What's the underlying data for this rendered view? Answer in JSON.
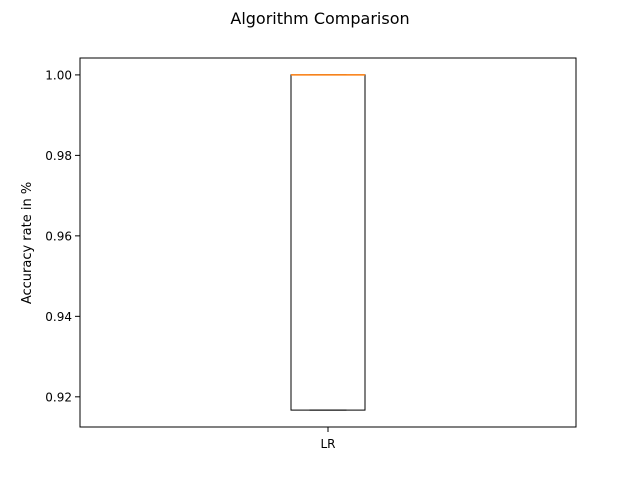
{
  "chart_data": {
    "type": "box",
    "title": "Algorithm Comparison",
    "xlabel": "",
    "ylabel": "Accuracy rate in %",
    "categories": [
      "LR"
    ],
    "boxes": [
      {
        "category": "LR",
        "whisker_low": 0.9167,
        "q1": 0.9167,
        "median": 1.0,
        "q3": 1.0,
        "whisker_high": 1.0
      }
    ],
    "ylim": [
      0.9125,
      1.0042
    ],
    "yticks": [
      0.92,
      0.94,
      0.96,
      0.98,
      1.0
    ],
    "ytick_labels": [
      "0.92",
      "0.94",
      "0.96",
      "0.98",
      "1.00"
    ],
    "grid": false,
    "colors": {
      "box": "#000000",
      "median": "#ff7f0e",
      "axes": "#000000"
    }
  }
}
